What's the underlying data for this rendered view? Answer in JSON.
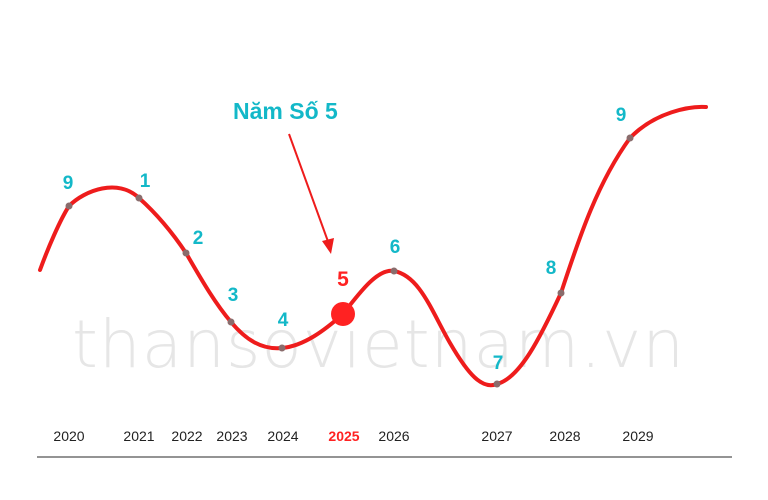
{
  "chart_data": {
    "type": "line",
    "title": "Năm Số 5",
    "watermark": "thansovietnam.vn",
    "x": [
      "2020",
      "2021",
      "2022",
      "2023",
      "2024",
      "2025",
      "2026",
      "2027",
      "2028",
      "2029"
    ],
    "values": [
      9,
      1,
      2,
      3,
      4,
      5,
      6,
      7,
      8,
      9
    ],
    "labels": [
      "9",
      "1",
      "2",
      "3",
      "4",
      "5",
      "6",
      "7",
      "8",
      "9"
    ],
    "highlight": {
      "x": "2025",
      "label": "5"
    },
    "colors": {
      "line": "#ee1c1c",
      "highlight": "#ff2222",
      "label": "#13b8c8",
      "point": "#8a6c6c",
      "axis": "#555555",
      "watermark": "#e6e6e6"
    }
  }
}
